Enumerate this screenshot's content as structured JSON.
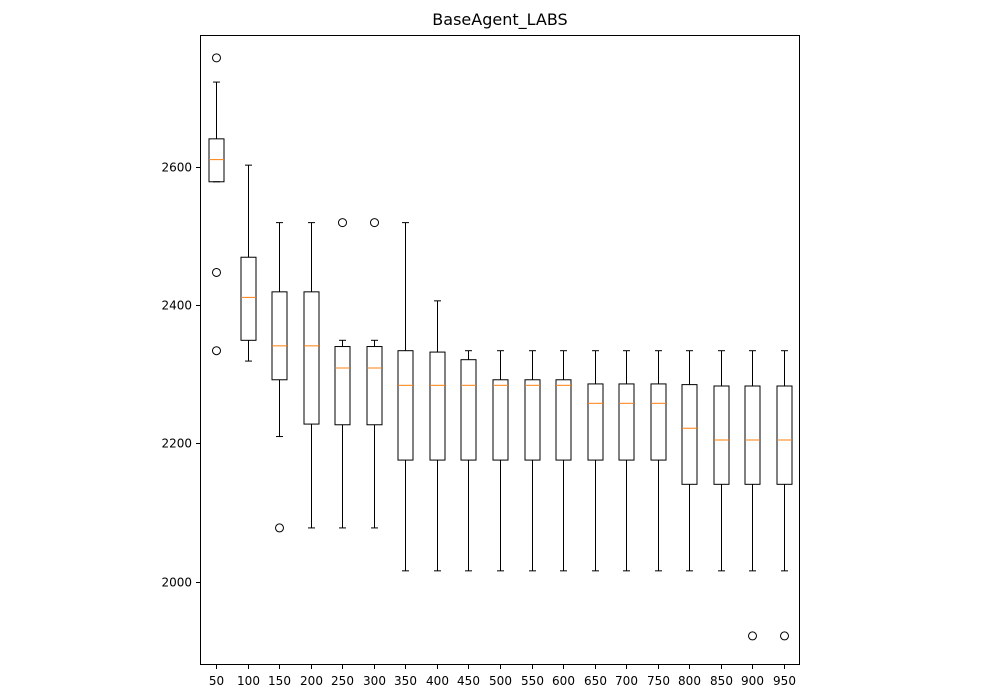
{
  "chart_data": {
    "type": "boxplot",
    "title": "BaseAgent_LABS",
    "xlabel": "",
    "ylabel": "",
    "ylim": [
      1880,
      2790
    ],
    "yticks": [
      2000,
      2200,
      2400,
      2600
    ],
    "categories": [
      "50",
      "100",
      "150",
      "200",
      "250",
      "300",
      "350",
      "400",
      "450",
      "500",
      "550",
      "600",
      "650",
      "700",
      "750",
      "800",
      "850",
      "900",
      "950"
    ],
    "boxes": [
      {
        "label": "50",
        "whislo": 2578,
        "q1": 2578,
        "med": 2610,
        "q3": 2640,
        "whishi": 2722,
        "fliers": [
          2757,
          2447,
          2334
        ]
      },
      {
        "label": "100",
        "whislo": 2319,
        "q1": 2349,
        "med": 2411,
        "q3": 2469,
        "whishi": 2602,
        "fliers": []
      },
      {
        "label": "150",
        "whislo": 2210,
        "q1": 2292,
        "med": 2341,
        "q3": 2419,
        "whishi": 2519,
        "fliers": [
          2078
        ]
      },
      {
        "label": "200",
        "whislo": 2078,
        "q1": 2228,
        "med": 2341,
        "q3": 2419,
        "whishi": 2519,
        "fliers": []
      },
      {
        "label": "250",
        "whislo": 2078,
        "q1": 2227,
        "med": 2309,
        "q3": 2340,
        "whishi": 2349,
        "fliers": [
          2519
        ]
      },
      {
        "label": "300",
        "whislo": 2078,
        "q1": 2227,
        "med": 2309,
        "q3": 2340,
        "whishi": 2349,
        "fliers": [
          2519
        ]
      },
      {
        "label": "350",
        "whislo": 2016,
        "q1": 2176,
        "med": 2284,
        "q3": 2334,
        "whishi": 2519,
        "fliers": []
      },
      {
        "label": "400",
        "whislo": 2016,
        "q1": 2176,
        "med": 2284,
        "q3": 2332,
        "whishi": 2406,
        "fliers": []
      },
      {
        "label": "450",
        "whislo": 2016,
        "q1": 2176,
        "med": 2284,
        "q3": 2321,
        "whishi": 2334,
        "fliers": []
      },
      {
        "label": "500",
        "whislo": 2016,
        "q1": 2176,
        "med": 2284,
        "q3": 2292,
        "whishi": 2334,
        "fliers": []
      },
      {
        "label": "550",
        "whislo": 2016,
        "q1": 2176,
        "med": 2284,
        "q3": 2292,
        "whishi": 2334,
        "fliers": []
      },
      {
        "label": "600",
        "whislo": 2016,
        "q1": 2176,
        "med": 2284,
        "q3": 2292,
        "whishi": 2334,
        "fliers": []
      },
      {
        "label": "650",
        "whislo": 2016,
        "q1": 2176,
        "med": 2258,
        "q3": 2286,
        "whishi": 2334,
        "fliers": []
      },
      {
        "label": "700",
        "whislo": 2016,
        "q1": 2176,
        "med": 2258,
        "q3": 2286,
        "whishi": 2334,
        "fliers": []
      },
      {
        "label": "750",
        "whislo": 2016,
        "q1": 2176,
        "med": 2258,
        "q3": 2286,
        "whishi": 2334,
        "fliers": []
      },
      {
        "label": "800",
        "whislo": 2016,
        "q1": 2141,
        "med": 2222,
        "q3": 2285,
        "whishi": 2334,
        "fliers": []
      },
      {
        "label": "850",
        "whislo": 2016,
        "q1": 2141,
        "med": 2205,
        "q3": 2283,
        "whishi": 2334,
        "fliers": []
      },
      {
        "label": "900",
        "whislo": 2016,
        "q1": 2141,
        "med": 2205,
        "q3": 2283,
        "whishi": 2334,
        "fliers": [
          1922
        ]
      },
      {
        "label": "950",
        "whislo": 2016,
        "q1": 2141,
        "med": 2205,
        "q3": 2283,
        "whishi": 2334,
        "fliers": [
          1922
        ]
      }
    ],
    "colors": {
      "box": "#000000",
      "median": "#ff7f0e",
      "flier": "#000000"
    },
    "grid": false,
    "legend": "none"
  }
}
